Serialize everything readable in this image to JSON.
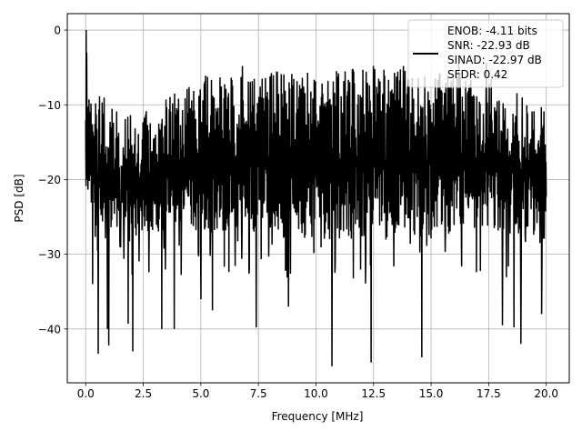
{
  "chart_data": {
    "type": "line",
    "title": "",
    "xlabel": "Frequency [MHz]",
    "ylabel": "PSD [dB]",
    "xlim": [
      -0.8,
      21.0
    ],
    "ylim": [
      -47.2,
      2.2
    ],
    "xticks": [
      0.0,
      2.5,
      5.0,
      7.5,
      10.0,
      12.5,
      15.0,
      17.5,
      20.0
    ],
    "xtick_labels": [
      "0.0",
      "2.5",
      "5.0",
      "7.5",
      "10.0",
      "12.5",
      "15.0",
      "17.5",
      "20.0"
    ],
    "yticks": [
      0,
      -10,
      -20,
      -30,
      -40
    ],
    "ytick_labels": [
      "0",
      "−10",
      "−20",
      "−30",
      "−40"
    ],
    "grid": true,
    "legend_position": "top-right",
    "line_color": "#000000",
    "series": [
      {
        "name": "ENOB: -4.11 bits\nSNR: -22.93 dB\nSINAD: -22.97 dB\nSFDR: 0.42",
        "legend_lines": [
          "ENOB: -4.11 bits",
          "SNR: -22.93 dB",
          "SINAD: -22.97 dB",
          "SFDR: 0.42"
        ],
        "description_of_shape": "dense noise spectrum",
        "x_start": 0.0,
        "x_end": 20.0,
        "peak": {
          "x": 0.02,
          "y": 0.0
        },
        "envelope_upper": [
          {
            "x": 0.0,
            "y": -8.0
          },
          {
            "x": 2.5,
            "y": -11.0
          },
          {
            "x": 5.0,
            "y": -6.0
          },
          {
            "x": 7.5,
            "y": -5.5
          },
          {
            "x": 10.0,
            "y": -5.5
          },
          {
            "x": 12.5,
            "y": -5.0
          },
          {
            "x": 15.0,
            "y": -5.5
          },
          {
            "x": 17.5,
            "y": -6.0
          },
          {
            "x": 20.0,
            "y": -10.5
          }
        ],
        "envelope_lower": [
          {
            "x": 0.0,
            "y": -26.0
          },
          {
            "x": 2.5,
            "y": -27.0
          },
          {
            "x": 5.0,
            "y": -27.0
          },
          {
            "x": 7.5,
            "y": -27.0
          },
          {
            "x": 10.0,
            "y": -28.0
          },
          {
            "x": 12.5,
            "y": -28.0
          },
          {
            "x": 15.0,
            "y": -27.5
          },
          {
            "x": 17.5,
            "y": -27.0
          },
          {
            "x": 20.0,
            "y": -28.0
          }
        ],
        "deep_nulls": [
          {
            "x": 0.3,
            "y": -34.0
          },
          {
            "x": 0.55,
            "y": -43.3
          },
          {
            "x": 0.95,
            "y": -40.0
          },
          {
            "x": 1.0,
            "y": -42.2
          },
          {
            "x": 1.85,
            "y": -39.3
          },
          {
            "x": 2.05,
            "y": -43.0
          },
          {
            "x": 3.3,
            "y": -40.0
          },
          {
            "x": 3.85,
            "y": -40.0
          },
          {
            "x": 5.0,
            "y": -36.0
          },
          {
            "x": 5.5,
            "y": -37.5
          },
          {
            "x": 7.4,
            "y": -39.8
          },
          {
            "x": 8.8,
            "y": -37.0
          },
          {
            "x": 10.7,
            "y": -45.0
          },
          {
            "x": 12.4,
            "y": -44.5
          },
          {
            "x": 14.6,
            "y": -43.8
          },
          {
            "x": 18.1,
            "y": -39.5
          },
          {
            "x": 18.6,
            "y": -39.8
          },
          {
            "x": 18.9,
            "y": -42.0
          },
          {
            "x": 19.8,
            "y": -38.0
          }
        ],
        "tall_peaks": [
          {
            "x": 0.05,
            "y": -3.0
          },
          {
            "x": 6.8,
            "y": -4.8
          },
          {
            "x": 12.5,
            "y": -4.8
          },
          {
            "x": 13.8,
            "y": -4.8
          },
          {
            "x": 16.2,
            "y": -4.5
          },
          {
            "x": 17.4,
            "y": -4.4
          }
        ]
      }
    ]
  }
}
